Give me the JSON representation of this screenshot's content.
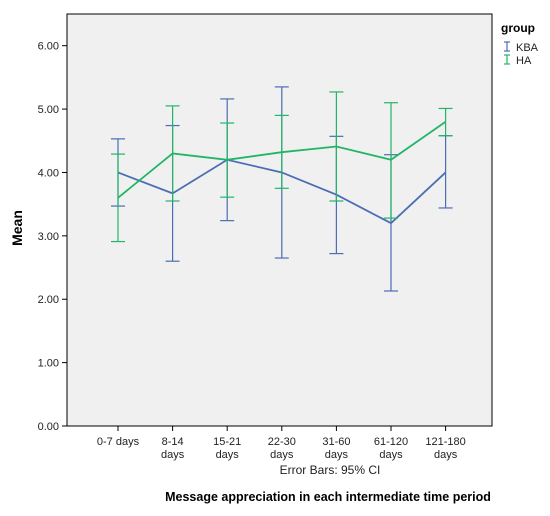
{
  "chart_data": {
    "type": "line",
    "categories": [
      [
        "0-7 days"
      ],
      [
        "8-14",
        "days"
      ],
      [
        "15-21",
        "days"
      ],
      [
        "22-30",
        "days"
      ],
      [
        "31-60",
        "days"
      ],
      [
        "61-120",
        "days"
      ],
      [
        "121-180",
        "days"
      ]
    ],
    "ylabel": "Mean",
    "xlabel": "Message appreciation in each intermediate time period",
    "note": "Error Bars: 95% CI",
    "ylim": [
      0,
      6.5
    ],
    "yticks": [
      "0.00",
      "1.00",
      "2.00",
      "3.00",
      "4.00",
      "5.00",
      "6.00"
    ],
    "grid": false,
    "legend": {
      "title": "group",
      "position": "top-right"
    },
    "series": [
      {
        "name": "KBA",
        "color": "#4a6db5",
        "values": [
          4.0,
          3.67,
          4.2,
          4.0,
          3.65,
          3.2,
          4.0
        ],
        "ci_low": [
          3.47,
          2.6,
          3.24,
          2.65,
          2.72,
          2.13,
          3.44
        ],
        "ci_high": [
          4.53,
          4.74,
          5.16,
          5.35,
          4.57,
          4.28,
          4.58
        ]
      },
      {
        "name": "HA",
        "color": "#22b566",
        "values": [
          3.6,
          4.3,
          4.2,
          4.32,
          4.41,
          4.2,
          4.8
        ],
        "ci_low": [
          2.91,
          3.55,
          3.61,
          3.75,
          3.55,
          3.28,
          4.58
        ],
        "ci_high": [
          4.29,
          5.05,
          4.78,
          4.9,
          5.27,
          5.1,
          5.01
        ]
      }
    ]
  }
}
